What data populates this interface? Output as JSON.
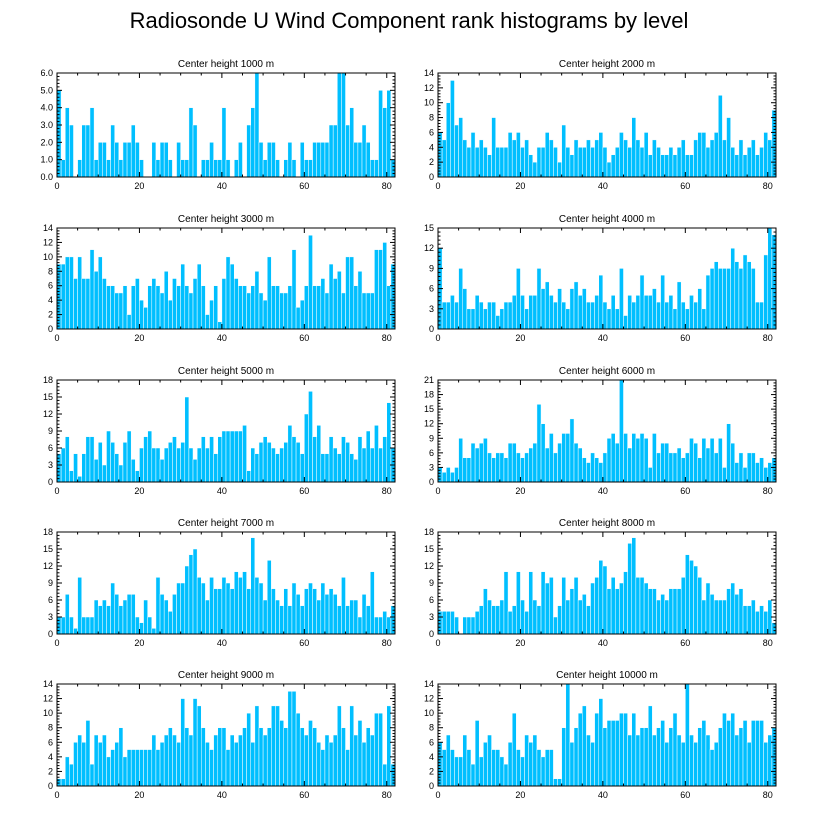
{
  "title": "Radiosonde U Wind Component rank histograms by level",
  "colors": {
    "bar": "#00bfff",
    "frame": "#000000"
  },
  "chart_data": [
    {
      "type": "bar",
      "title": "Center height 1000 m",
      "xlim": [
        0,
        82
      ],
      "ylim": [
        0,
        6
      ],
      "xticks": [
        0,
        20,
        40,
        60,
        80
      ],
      "yticks": [
        0,
        1,
        2,
        3,
        4,
        5,
        6
      ],
      "ytick_labels": [
        "0.0",
        "1.0",
        "2.0",
        "3.0",
        "4.0",
        "5.0",
        "6.0"
      ],
      "values": [
        5,
        1,
        4,
        3,
        0,
        1,
        3,
        3,
        4,
        1,
        2,
        2,
        1,
        3,
        2,
        1,
        2,
        2,
        3,
        2,
        1,
        0,
        0,
        2,
        1,
        2,
        2,
        1,
        0,
        2,
        1,
        1,
        4,
        3,
        0,
        1,
        1,
        2,
        1,
        1,
        4,
        1,
        0,
        1,
        2,
        0,
        3,
        4,
        6,
        2,
        1,
        2,
        2,
        1,
        0,
        1,
        2,
        1,
        0,
        2,
        1,
        1,
        2,
        2,
        2,
        2,
        3,
        3,
        6,
        6,
        3,
        4,
        2,
        2,
        3,
        2,
        1,
        1,
        5,
        4,
        5,
        1
      ]
    },
    {
      "type": "bar",
      "title": "Center height 2000 m",
      "xlim": [
        0,
        82
      ],
      "ylim": [
        0,
        14
      ],
      "xticks": [
        0,
        20,
        40,
        60,
        80
      ],
      "yticks": [
        0,
        2,
        4,
        6,
        8,
        10,
        12,
        14
      ],
      "ytick_labels": [
        "0",
        "2",
        "4",
        "6",
        "8",
        "10",
        "12",
        "14"
      ],
      "values": [
        6,
        5,
        10,
        13,
        7,
        8,
        5,
        4,
        6,
        4,
        5,
        4,
        3,
        8,
        4,
        4,
        4,
        6,
        5,
        6,
        4,
        5,
        3,
        2,
        4,
        4,
        6,
        5,
        4,
        2,
        7,
        4,
        3,
        5,
        4,
        4,
        5,
        4,
        5,
        6,
        4,
        2,
        3,
        4,
        6,
        5,
        4,
        8,
        5,
        4,
        6,
        3,
        5,
        4,
        3,
        3,
        4,
        3,
        4,
        5,
        3,
        3,
        5,
        6,
        6,
        4,
        5,
        6,
        11,
        5,
        8,
        4,
        3,
        5,
        3,
        4,
        5,
        3,
        4,
        6,
        5,
        9
      ]
    },
    {
      "type": "bar",
      "title": "Center height 3000 m",
      "xlim": [
        0,
        82
      ],
      "ylim": [
        0,
        14
      ],
      "xticks": [
        0,
        20,
        40,
        60,
        80
      ],
      "yticks": [
        0,
        2,
        4,
        6,
        8,
        10,
        12,
        14
      ],
      "ytick_labels": [
        "0",
        "2",
        "4",
        "6",
        "8",
        "10",
        "12",
        "14"
      ],
      "values": [
        9,
        9,
        10,
        10,
        7,
        10,
        7,
        7,
        11,
        8,
        10,
        7,
        6,
        6,
        5,
        5,
        6,
        2,
        6,
        7,
        4,
        3,
        6,
        7,
        6,
        5,
        8,
        4,
        7,
        6,
        9,
        6,
        5,
        7,
        9,
        6,
        2,
        4,
        6,
        1,
        7,
        10,
        9,
        7,
        6,
        6,
        5,
        6,
        8,
        5,
        4,
        10,
        6,
        6,
        5,
        5,
        6,
        11,
        3,
        4,
        6,
        13,
        6,
        6,
        7,
        5,
        9,
        7,
        8,
        5,
        10,
        10,
        6,
        8,
        5,
        5,
        5,
        11,
        11,
        12,
        6,
        9
      ]
    },
    {
      "type": "bar",
      "title": "Center height 4000 m",
      "xlim": [
        0,
        82
      ],
      "ylim": [
        0,
        15
      ],
      "xticks": [
        0,
        20,
        40,
        60,
        80
      ],
      "yticks": [
        0,
        3,
        6,
        9,
        12,
        15
      ],
      "ytick_labels": [
        "0",
        "3",
        "6",
        "9",
        "12",
        "15"
      ],
      "values": [
        12,
        4,
        4,
        5,
        4,
        9,
        6,
        3,
        3,
        5,
        4,
        3,
        4,
        4,
        2,
        3,
        4,
        4,
        5,
        9,
        5,
        3,
        5,
        5,
        9,
        6,
        7,
        5,
        4,
        6,
        4,
        3,
        6,
        7,
        5,
        6,
        4,
        4,
        5,
        8,
        4,
        3,
        5,
        3,
        9,
        2,
        5,
        4,
        5,
        8,
        5,
        5,
        6,
        4,
        8,
        4,
        5,
        3,
        7,
        4,
        3,
        5,
        4,
        6,
        3,
        8,
        9,
        10,
        9,
        9,
        9,
        12,
        10,
        9,
        11,
        10,
        9,
        4,
        4,
        11,
        15,
        14
      ]
    },
    {
      "type": "bar",
      "title": "Center height 5000 m",
      "xlim": [
        0,
        82
      ],
      "ylim": [
        0,
        18
      ],
      "xticks": [
        0,
        20,
        40,
        60,
        80
      ],
      "yticks": [
        0,
        3,
        6,
        9,
        12,
        15,
        18
      ],
      "ytick_labels": [
        "0",
        "3",
        "6",
        "9",
        "12",
        "15",
        "18"
      ],
      "values": [
        5,
        6,
        8,
        2,
        5,
        1,
        5,
        8,
        8,
        4,
        7,
        3,
        9,
        7,
        5,
        3,
        7,
        9,
        4,
        2,
        6,
        8,
        9,
        6,
        6,
        4,
        6,
        7,
        8,
        6,
        7,
        15,
        6,
        4,
        6,
        8,
        6,
        8,
        5,
        8,
        9,
        9,
        9,
        9,
        9,
        10,
        2,
        6,
        5,
        7,
        8,
        7,
        6,
        5,
        6,
        7,
        10,
        8,
        7,
        5,
        12,
        16,
        8,
        10,
        5,
        5,
        8,
        6,
        5,
        8,
        7,
        5,
        4,
        8,
        6,
        9,
        6,
        10,
        6,
        8,
        14,
        6
      ]
    },
    {
      "type": "bar",
      "title": "Center height 6000 m",
      "xlim": [
        0,
        82
      ],
      "ylim": [
        0,
        21
      ],
      "xticks": [
        0,
        20,
        40,
        60,
        80
      ],
      "yticks": [
        0,
        3,
        6,
        9,
        12,
        15,
        18,
        21
      ],
      "ytick_labels": [
        "0",
        "3",
        "6",
        "9",
        "12",
        "15",
        "18",
        "21"
      ],
      "values": [
        3,
        2,
        3,
        2,
        3,
        9,
        5,
        5,
        8,
        7,
        8,
        9,
        6,
        5,
        6,
        6,
        5,
        8,
        8,
        6,
        5,
        6,
        7,
        8,
        16,
        12,
        7,
        10,
        6,
        8,
        10,
        10,
        13,
        8,
        7,
        5,
        4,
        6,
        5,
        4,
        6,
        9,
        10,
        8,
        21,
        10,
        7,
        10,
        9,
        10,
        9,
        3,
        10,
        6,
        8,
        8,
        6,
        6,
        7,
        5,
        6,
        9,
        8,
        5,
        9,
        7,
        9,
        6,
        9,
        3,
        12,
        8,
        4,
        6,
        3,
        6,
        6,
        4,
        5,
        3,
        4,
        5
      ]
    },
    {
      "type": "bar",
      "title": "Center height 7000 m",
      "xlim": [
        0,
        82
      ],
      "ylim": [
        0,
        18
      ],
      "xticks": [
        0,
        20,
        40,
        60,
        80
      ],
      "yticks": [
        0,
        3,
        6,
        9,
        12,
        15,
        18
      ],
      "ytick_labels": [
        "0",
        "3",
        "6",
        "9",
        "12",
        "15",
        "18"
      ],
      "values": [
        3,
        3,
        7,
        3,
        1,
        10,
        3,
        3,
        3,
        6,
        5,
        6,
        5,
        9,
        7,
        5,
        6,
        7,
        7,
        3,
        2,
        6,
        3,
        1,
        10,
        7,
        6,
        4,
        7,
        9,
        9,
        12,
        14,
        15,
        10,
        9,
        6,
        10,
        8,
        8,
        10,
        9,
        8,
        11,
        10,
        11,
        8,
        17,
        10,
        9,
        6,
        13,
        8,
        6,
        5,
        8,
        5,
        9,
        7,
        5,
        8,
        9,
        8,
        6,
        9,
        7,
        8,
        7,
        5,
        10,
        5,
        6,
        6,
        3,
        7,
        5,
        11,
        3,
        3,
        4,
        3,
        5
      ]
    },
    {
      "type": "bar",
      "title": "Center height 8000 m",
      "xlim": [
        0,
        82
      ],
      "ylim": [
        0,
        18
      ],
      "xticks": [
        0,
        20,
        40,
        60,
        80
      ],
      "yticks": [
        0,
        3,
        6,
        9,
        12,
        15,
        18
      ],
      "ytick_labels": [
        "0",
        "3",
        "6",
        "9",
        "12",
        "15",
        "18"
      ],
      "values": [
        4,
        4,
        4,
        4,
        3,
        0,
        3,
        3,
        3,
        4,
        5,
        8,
        6,
        5,
        5,
        6,
        11,
        4,
        5,
        11,
        6,
        4,
        11,
        6,
        5,
        11,
        9,
        10,
        3,
        5,
        10,
        6,
        8,
        10,
        6,
        7,
        5,
        9,
        10,
        13,
        12,
        8,
        10,
        8,
        9,
        11,
        16,
        17,
        10,
        10,
        9,
        8,
        8,
        6,
        7,
        6,
        8,
        8,
        8,
        10,
        14,
        13,
        12,
        10,
        6,
        9,
        7,
        6,
        6,
        6,
        8,
        9,
        7,
        8,
        5,
        5,
        6,
        4,
        5,
        4,
        6,
        2
      ]
    },
    {
      "type": "bar",
      "title": "Center height 9000 m",
      "xlim": [
        0,
        82
      ],
      "ylim": [
        0,
        14
      ],
      "xticks": [
        0,
        20,
        40,
        60,
        80
      ],
      "yticks": [
        0,
        2,
        4,
        6,
        8,
        10,
        12,
        14
      ],
      "ytick_labels": [
        "0",
        "2",
        "4",
        "6",
        "8",
        "10",
        "12",
        "14"
      ],
      "values": [
        1,
        1,
        4,
        3,
        6,
        7,
        6,
        9,
        3,
        7,
        6,
        7,
        4,
        5,
        6,
        8,
        4,
        5,
        5,
        5,
        5,
        5,
        5,
        7,
        5,
        6,
        7,
        8,
        7,
        6,
        12,
        8,
        7,
        12,
        11,
        8,
        6,
        5,
        7,
        8,
        8,
        5,
        7,
        6,
        7,
        8,
        10,
        6,
        11,
        8,
        7,
        8,
        11,
        11,
        9,
        8,
        13,
        13,
        10,
        8,
        7,
        9,
        8,
        6,
        5,
        7,
        6,
        7,
        11,
        8,
        5,
        11,
        7,
        9,
        6,
        8,
        7,
        10,
        10,
        3,
        11,
        3
      ]
    },
    {
      "type": "bar",
      "title": "Center height 10000 m",
      "xlim": [
        0,
        82
      ],
      "ylim": [
        0,
        14
      ],
      "xticks": [
        0,
        20,
        40,
        60,
        80
      ],
      "yticks": [
        0,
        2,
        4,
        6,
        8,
        10,
        12,
        14
      ],
      "ytick_labels": [
        "0",
        "2",
        "4",
        "6",
        "8",
        "10",
        "12",
        "14"
      ],
      "values": [
        6,
        5,
        7,
        5,
        4,
        4,
        7,
        5,
        3,
        9,
        4,
        6,
        7,
        5,
        5,
        4,
        3,
        6,
        10,
        5,
        4,
        7,
        6,
        7,
        5,
        4,
        5,
        5,
        1,
        1,
        8,
        14,
        6,
        8,
        10,
        11,
        7,
        6,
        10,
        12,
        8,
        9,
        9,
        9,
        10,
        10,
        7,
        10,
        7,
        8,
        8,
        11,
        7,
        8,
        9,
        6,
        8,
        10,
        7,
        6,
        14,
        7,
        6,
        8,
        9,
        7,
        5,
        6,
        8,
        10,
        9,
        10,
        7,
        8,
        9,
        6,
        9,
        9,
        9,
        6,
        7,
        8
      ]
    }
  ]
}
